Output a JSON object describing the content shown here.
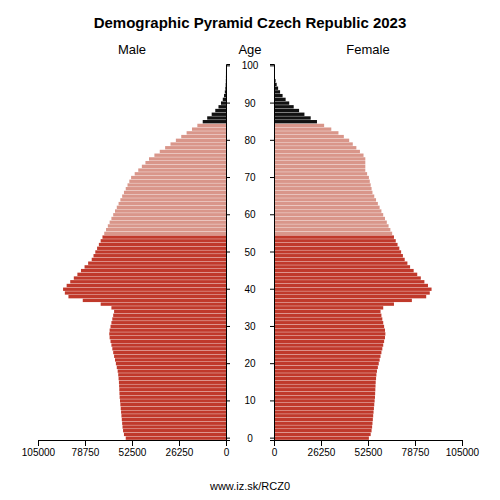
{
  "chart_data": {
    "type": "bar",
    "orientation": "horizontal",
    "title": "Demographic Pyramid Czech Republic 2023",
    "ylabel": "Age",
    "annotations": [
      "www.iz.sk/RCZ0"
    ],
    "grid": false,
    "xlim": [
      0,
      105000
    ],
    "xticks": [
      0,
      26250,
      52500,
      78750,
      105000
    ],
    "categories": [
      "0",
      null,
      null,
      null,
      null,
      null,
      null,
      null,
      null,
      null,
      "10",
      null,
      null,
      null,
      null,
      null,
      null,
      null,
      null,
      null,
      "20",
      null,
      null,
      null,
      null,
      null,
      null,
      null,
      null,
      null,
      "30",
      null,
      null,
      null,
      null,
      null,
      null,
      null,
      null,
      null,
      "40",
      null,
      null,
      null,
      null,
      null,
      null,
      null,
      null,
      null,
      "50",
      null,
      null,
      null,
      null,
      null,
      null,
      null,
      null,
      null,
      "60",
      null,
      null,
      null,
      null,
      null,
      null,
      null,
      null,
      null,
      "70",
      null,
      null,
      null,
      null,
      null,
      null,
      null,
      null,
      null,
      "80",
      null,
      null,
      null,
      null,
      null,
      null,
      null,
      null,
      null,
      "90",
      null,
      null,
      null,
      null,
      null,
      null,
      null,
      null,
      null,
      "100"
    ],
    "series": [
      {
        "name": "Male",
        "colors": [
          "#c0392b",
          "#c0392b",
          "#c0392b",
          "#c0392b",
          "#c0392b",
          "#c0392b",
          "#c0392b",
          "#c0392b",
          "#c0392b",
          "#c0392b",
          "#c0392b",
          "#c0392b",
          "#c0392b",
          "#c0392b",
          "#c0392b",
          "#c0392b",
          "#c0392b",
          "#c0392b",
          "#c0392b",
          "#c0392b",
          "#c0392b",
          "#c0392b",
          "#c0392b",
          "#c0392b",
          "#c0392b",
          "#c0392b",
          "#c0392b",
          "#c0392b",
          "#c0392b",
          "#c0392b",
          "#c0392b",
          "#c0392b",
          "#c0392b",
          "#c0392b",
          "#c0392b",
          "#c0392b",
          "#c0392b",
          "#c0392b",
          "#c0392b",
          "#c0392b",
          "#c0392b",
          "#c0392b",
          "#c0392b",
          "#c0392b",
          "#c0392b",
          "#c0392b",
          "#c0392b",
          "#c0392b",
          "#c0392b",
          "#c0392b",
          "#c0392b",
          "#c0392b",
          "#c0392b",
          "#c0392b",
          "#c0392b",
          "#d9968a",
          "#d9968a",
          "#d9968a",
          "#d9968a",
          "#d9968a",
          "#d9968a",
          "#d9968a",
          "#d9968a",
          "#d9968a",
          "#d9968a",
          "#d9968a",
          "#d9968a",
          "#d9968a",
          "#d9968a",
          "#d9968a",
          "#d9968a",
          "#d9968a",
          "#d9968a",
          "#d9968a",
          "#d9968a",
          "#d9968a",
          "#d9968a",
          "#d9968a",
          "#d9968a",
          "#d9968a",
          "#d9968a",
          "#d9968a",
          "#d9968a",
          "#d9968a",
          "#d9968a",
          "#111111",
          "#111111",
          "#111111",
          "#111111",
          "#111111",
          "#111111",
          "#111111",
          "#111111",
          "#111111",
          "#111111",
          "#111111",
          "#111111",
          "#111111",
          "#111111",
          "#111111",
          "#111111"
        ],
        "values": [
          56000,
          57000,
          57500,
          57800,
          58000,
          58200,
          58400,
          58600,
          58800,
          59000,
          59200,
          59400,
          59500,
          59600,
          59700,
          59800,
          60000,
          60200,
          60500,
          61000,
          61500,
          62000,
          62500,
          63000,
          63500,
          64000,
          64500,
          65000,
          65200,
          65000,
          64500,
          64000,
          63500,
          63000,
          62500,
          64000,
          70000,
          80000,
          88000,
          90000,
          91000,
          89000,
          87000,
          85000,
          83000,
          81000,
          79000,
          77000,
          75000,
          74000,
          73000,
          72000,
          71000,
          70000,
          69000,
          68000,
          67000,
          66000,
          65000,
          64000,
          63000,
          62000,
          61000,
          60000,
          59000,
          58000,
          57000,
          56000,
          55000,
          54000,
          53000,
          51000,
          49000,
          47000,
          45000,
          43000,
          40000,
          37000,
          34000,
          31000,
          28000,
          25000,
          22000,
          19000,
          16000,
          13000,
          10500,
          8000,
          6000,
          4200,
          2800,
          1800,
          1100,
          650,
          380,
          210,
          110,
          55,
          25,
          10,
          5
        ]
      },
      {
        "name": "Female",
        "colors": [
          "#c0392b",
          "#c0392b",
          "#c0392b",
          "#c0392b",
          "#c0392b",
          "#c0392b",
          "#c0392b",
          "#c0392b",
          "#c0392b",
          "#c0392b",
          "#c0392b",
          "#c0392b",
          "#c0392b",
          "#c0392b",
          "#c0392b",
          "#c0392b",
          "#c0392b",
          "#c0392b",
          "#c0392b",
          "#c0392b",
          "#c0392b",
          "#c0392b",
          "#c0392b",
          "#c0392b",
          "#c0392b",
          "#c0392b",
          "#c0392b",
          "#c0392b",
          "#c0392b",
          "#c0392b",
          "#c0392b",
          "#c0392b",
          "#c0392b",
          "#c0392b",
          "#c0392b",
          "#c0392b",
          "#c0392b",
          "#c0392b",
          "#c0392b",
          "#c0392b",
          "#c0392b",
          "#c0392b",
          "#c0392b",
          "#c0392b",
          "#c0392b",
          "#c0392b",
          "#c0392b",
          "#c0392b",
          "#c0392b",
          "#c0392b",
          "#c0392b",
          "#c0392b",
          "#c0392b",
          "#c0392b",
          "#c0392b",
          "#d9968a",
          "#d9968a",
          "#d9968a",
          "#d9968a",
          "#d9968a",
          "#d9968a",
          "#d9968a",
          "#d9968a",
          "#d9968a",
          "#d9968a",
          "#d9968a",
          "#d9968a",
          "#d9968a",
          "#d9968a",
          "#d9968a",
          "#d9968a",
          "#d9968a",
          "#d9968a",
          "#d9968a",
          "#d9968a",
          "#d9968a",
          "#d9968a",
          "#d9968a",
          "#d9968a",
          "#d9968a",
          "#d9968a",
          "#d9968a",
          "#d9968a",
          "#d9968a",
          "#d9968a",
          "#111111",
          "#111111",
          "#111111",
          "#111111",
          "#111111",
          "#111111",
          "#111111",
          "#111111",
          "#111111",
          "#111111",
          "#111111",
          "#111111",
          "#111111",
          "#111111",
          "#111111",
          "#111111"
        ],
        "values": [
          53000,
          54000,
          54500,
          54800,
          55000,
          55200,
          55400,
          55600,
          55800,
          56000,
          56200,
          56400,
          56500,
          56600,
          56700,
          56800,
          57000,
          57200,
          57500,
          58000,
          58500,
          59000,
          59500,
          60000,
          60500,
          61000,
          61500,
          62000,
          62200,
          62000,
          61500,
          61000,
          60500,
          60000,
          59500,
          61000,
          67000,
          77000,
          85000,
          87000,
          88000,
          86000,
          84000,
          82000,
          80000,
          78000,
          76000,
          74500,
          73000,
          72000,
          71000,
          70000,
          69000,
          68000,
          67000,
          66000,
          65000,
          64000,
          63000,
          62000,
          61000,
          60000,
          59000,
          58000,
          57000,
          56000,
          55000,
          54500,
          54000,
          53500,
          53000,
          52000,
          51000,
          51000,
          51000,
          51000,
          50000,
          48000,
          46000,
          44000,
          42000,
          39000,
          36000,
          32000,
          28000,
          24000,
          20500,
          17000,
          14000,
          11000,
          8500,
          6500,
          4800,
          3400,
          2300,
          1500,
          900,
          500,
          250,
          100,
          40
        ]
      }
    ]
  }
}
